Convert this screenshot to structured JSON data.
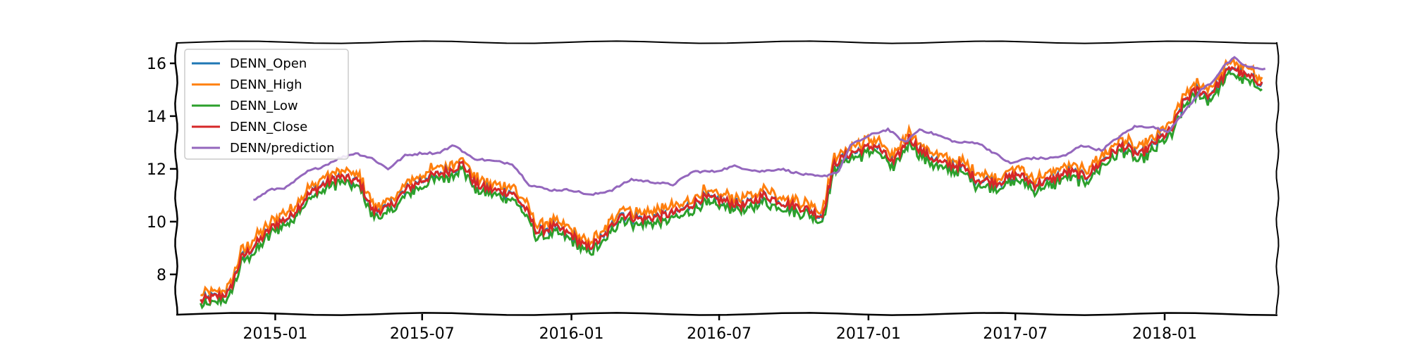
{
  "chart_data": {
    "type": "line",
    "title": "",
    "xlabel": "",
    "ylabel": "",
    "xlim": [
      "2014-09-01",
      "2018-05-20"
    ],
    "ylim": [
      6.5,
      16.8
    ],
    "x_ticks": [
      "2015-01",
      "2015-07",
      "2016-01",
      "2016-07",
      "2017-01",
      "2017-07",
      "2018-01"
    ],
    "y_ticks": [
      8,
      10,
      12,
      14,
      16
    ],
    "grid": false,
    "legend_position": "top-left",
    "series": [
      {
        "name": "DENN_Open",
        "color": "#1f77b4"
      },
      {
        "name": "DENN_High",
        "color": "#ff7f0e"
      },
      {
        "name": "DENN_Low",
        "color": "#2ca02c"
      },
      {
        "name": "DENN_Close",
        "color": "#d62728"
      },
      {
        "name": "DENN/prediction",
        "color": "#9467bd"
      }
    ],
    "close_series": [
      [
        "2014-10-01",
        7.0
      ],
      [
        "2014-10-20",
        7.15
      ],
      [
        "2014-11-05",
        7.3
      ],
      [
        "2014-11-20",
        8.6
      ],
      [
        "2014-12-10",
        9.2
      ],
      [
        "2015-01-01",
        9.9
      ],
      [
        "2015-01-20",
        10.2
      ],
      [
        "2015-02-10",
        11.0
      ],
      [
        "2015-03-01",
        11.4
      ],
      [
        "2015-03-20",
        11.7
      ],
      [
        "2015-04-15",
        11.5
      ],
      [
        "2015-05-01",
        10.4
      ],
      [
        "2015-05-20",
        10.5
      ],
      [
        "2015-06-15",
        11.3
      ],
      [
        "2015-07-10",
        11.7
      ],
      [
        "2015-08-01",
        11.9
      ],
      [
        "2015-08-20",
        12.2
      ],
      [
        "2015-09-05",
        11.4
      ],
      [
        "2015-09-25",
        11.2
      ],
      [
        "2015-10-20",
        11.1
      ],
      [
        "2015-11-05",
        10.5
      ],
      [
        "2015-11-20",
        9.6
      ],
      [
        "2015-12-10",
        9.8
      ],
      [
        "2016-01-01",
        9.5
      ],
      [
        "2016-01-20",
        9.0
      ],
      [
        "2016-02-10",
        9.4
      ],
      [
        "2016-03-01",
        10.3
      ],
      [
        "2016-03-25",
        10.1
      ],
      [
        "2016-04-20",
        10.2
      ],
      [
        "2016-05-15",
        10.4
      ],
      [
        "2016-06-10",
        10.9
      ],
      [
        "2016-07-05",
        10.8
      ],
      [
        "2016-08-01",
        10.6
      ],
      [
        "2016-08-25",
        11.0
      ],
      [
        "2016-09-20",
        10.7
      ],
      [
        "2016-10-15",
        10.5
      ],
      [
        "2016-11-05",
        10.2
      ],
      [
        "2016-11-20",
        12.2
      ],
      [
        "2016-12-10",
        12.6
      ],
      [
        "2017-01-10",
        12.9
      ],
      [
        "2017-02-01",
        12.2
      ],
      [
        "2017-02-20",
        13.2
      ],
      [
        "2017-03-10",
        12.6
      ],
      [
        "2017-04-01",
        12.2
      ],
      [
        "2017-04-25",
        12.1
      ],
      [
        "2017-05-15",
        11.6
      ],
      [
        "2017-06-10",
        11.5
      ],
      [
        "2017-07-05",
        11.8
      ],
      [
        "2017-07-25",
        11.4
      ],
      [
        "2017-08-15",
        11.6
      ],
      [
        "2017-09-05",
        11.9
      ],
      [
        "2017-09-25",
        11.7
      ],
      [
        "2017-10-20",
        12.4
      ],
      [
        "2017-11-10",
        12.9
      ],
      [
        "2017-12-01",
        12.5
      ],
      [
        "2017-12-20",
        13.0
      ],
      [
        "2018-01-10",
        13.5
      ],
      [
        "2018-01-25",
        14.6
      ],
      [
        "2018-02-10",
        15.0
      ],
      [
        "2018-02-25",
        14.8
      ],
      [
        "2018-03-10",
        15.3
      ],
      [
        "2018-03-25",
        15.9
      ],
      [
        "2018-04-05",
        15.6
      ],
      [
        "2018-04-20",
        15.4
      ],
      [
        "2018-05-01",
        15.3
      ]
    ],
    "prediction_series": [
      [
        "2014-12-05",
        10.8
      ],
      [
        "2014-12-25",
        11.2
      ],
      [
        "2015-01-15",
        11.3
      ],
      [
        "2015-02-10",
        11.9
      ],
      [
        "2015-03-01",
        12.1
      ],
      [
        "2015-03-20",
        12.4
      ],
      [
        "2015-04-10",
        12.6
      ],
      [
        "2015-04-30",
        12.4
      ],
      [
        "2015-05-20",
        12.0
      ],
      [
        "2015-06-10",
        12.5
      ],
      [
        "2015-07-01",
        12.6
      ],
      [
        "2015-07-20",
        12.6
      ],
      [
        "2015-08-10",
        12.9
      ],
      [
        "2015-09-01",
        12.4
      ],
      [
        "2015-09-25",
        12.3
      ],
      [
        "2015-10-20",
        12.2
      ],
      [
        "2015-11-10",
        11.4
      ],
      [
        "2015-12-05",
        11.2
      ],
      [
        "2016-01-01",
        11.2
      ],
      [
        "2016-01-25",
        11.0
      ],
      [
        "2016-02-20",
        11.2
      ],
      [
        "2016-03-15",
        11.6
      ],
      [
        "2016-04-10",
        11.5
      ],
      [
        "2016-05-05",
        11.4
      ],
      [
        "2016-05-30",
        11.9
      ],
      [
        "2016-06-25",
        11.9
      ],
      [
        "2016-07-20",
        12.1
      ],
      [
        "2016-08-20",
        11.9
      ],
      [
        "2016-09-15",
        12.0
      ],
      [
        "2016-10-10",
        11.8
      ],
      [
        "2016-11-05",
        11.7
      ],
      [
        "2016-11-25",
        11.9
      ],
      [
        "2016-12-10",
        12.9
      ],
      [
        "2017-01-05",
        13.3
      ],
      [
        "2017-01-25",
        13.5
      ],
      [
        "2017-02-15",
        13.0
      ],
      [
        "2017-03-05",
        13.5
      ],
      [
        "2017-03-25",
        13.3
      ],
      [
        "2017-04-20",
        13.0
      ],
      [
        "2017-05-15",
        13.0
      ],
      [
        "2017-06-05",
        12.6
      ],
      [
        "2017-06-25",
        12.2
      ],
      [
        "2017-07-15",
        12.4
      ],
      [
        "2017-08-10",
        12.4
      ],
      [
        "2017-09-01",
        12.5
      ],
      [
        "2017-09-20",
        12.9
      ],
      [
        "2017-10-15",
        12.7
      ],
      [
        "2017-11-05",
        13.2
      ],
      [
        "2017-11-25",
        13.6
      ],
      [
        "2017-12-15",
        13.6
      ],
      [
        "2018-01-05",
        13.4
      ],
      [
        "2018-01-20",
        14.0
      ],
      [
        "2018-02-01",
        14.4
      ],
      [
        "2018-02-15",
        15.0
      ],
      [
        "2018-03-01",
        15.3
      ],
      [
        "2018-03-15",
        15.9
      ],
      [
        "2018-03-28",
        16.2
      ],
      [
        "2018-04-10",
        15.9
      ],
      [
        "2018-04-25",
        15.8
      ],
      [
        "2018-05-05",
        15.8
      ]
    ]
  }
}
